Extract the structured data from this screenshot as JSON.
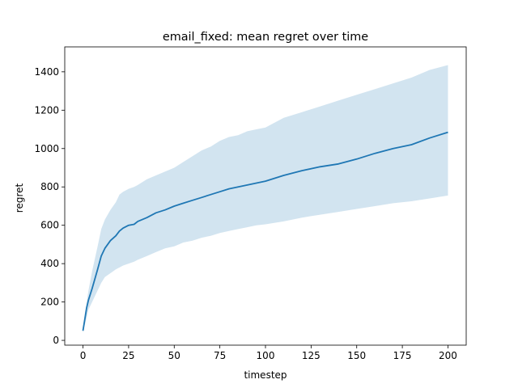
{
  "chart_data": {
    "type": "line",
    "title": "email_fixed: mean regret over time",
    "xlabel": "timestep",
    "ylabel": "regret",
    "xlim": [
      -10,
      210
    ],
    "ylim": [
      -25,
      1530
    ],
    "xticks": [
      0,
      25,
      50,
      75,
      100,
      125,
      150,
      175,
      200
    ],
    "yticks": [
      0,
      200,
      400,
      600,
      800,
      1000,
      1200,
      1400
    ],
    "grid": false,
    "legend": "none",
    "colors": {
      "line": "#1f77b4",
      "band": "#1f77b4",
      "band_opacity": 0.2
    },
    "series": [
      {
        "x": [
          0,
          1,
          2,
          3,
          5,
          8,
          10,
          12,
          15,
          18,
          20,
          22,
          25,
          28,
          30,
          35,
          40,
          45,
          50,
          55,
          60,
          65,
          70,
          75,
          80,
          85,
          90,
          95,
          100,
          110,
          120,
          130,
          140,
          150,
          160,
          170,
          180,
          190,
          200
        ],
        "mean": [
          50,
          110,
          170,
          210,
          270,
          370,
          440,
          480,
          520,
          545,
          570,
          585,
          600,
          605,
          620,
          640,
          665,
          680,
          700,
          715,
          730,
          745,
          760,
          775,
          790,
          800,
          810,
          820,
          830,
          860,
          885,
          905,
          920,
          945,
          975,
          1000,
          1020,
          1055,
          1085
        ],
        "upper": [
          60,
          140,
          200,
          260,
          360,
          490,
          580,
          630,
          680,
          720,
          760,
          775,
          790,
          800,
          810,
          840,
          860,
          880,
          900,
          930,
          960,
          990,
          1010,
          1040,
          1060,
          1070,
          1090,
          1100,
          1110,
          1160,
          1190,
          1220,
          1250,
          1280,
          1310,
          1340,
          1370,
          1410,
          1435
        ],
        "lower": [
          40,
          80,
          120,
          160,
          200,
          260,
          300,
          330,
          350,
          370,
          380,
          390,
          400,
          410,
          420,
          440,
          460,
          480,
          490,
          510,
          520,
          535,
          545,
          560,
          570,
          580,
          590,
          600,
          605,
          620,
          640,
          655,
          670,
          685,
          700,
          715,
          725,
          740,
          755
        ]
      }
    ]
  }
}
